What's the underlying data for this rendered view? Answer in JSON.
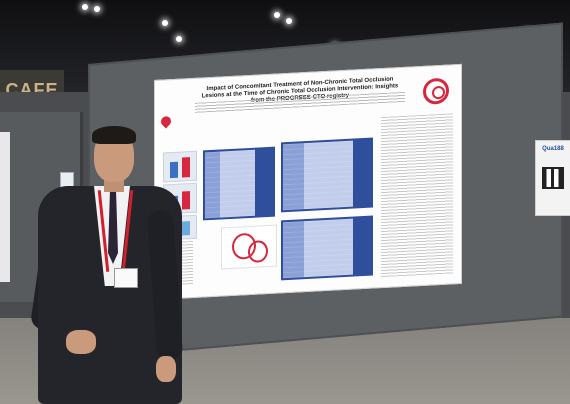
{
  "scene": {
    "poster": {
      "title": "Impact of Concomitant Treatment of Non-Chronic Total Occlusion Lesions at the Time of Chronic Total Occlusion Intervention: Insights from the PROGRESS-CTO registry"
    },
    "qr_card": {
      "label": "Qua188"
    },
    "back_sign": {
      "text": "CAFE"
    },
    "colors": {
      "poster_accent": "#d7263d",
      "table_blue": "#2f4f9c",
      "lanyard_red": "#d21f2c",
      "suit": "#24252a"
    }
  }
}
